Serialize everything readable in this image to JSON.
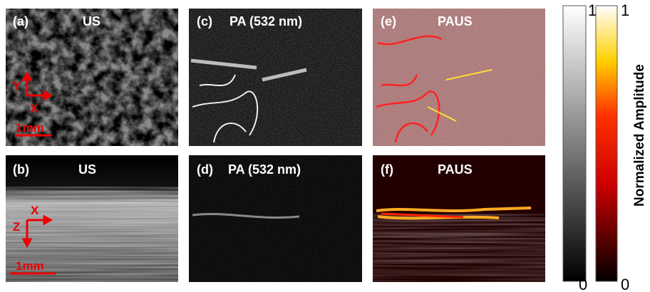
{
  "panels": [
    {
      "label": "(a)",
      "title": "US"
    },
    {
      "label": "(c)",
      "title": "PA (532 nm)"
    },
    {
      "label": "(e)",
      "title": "PAUS"
    },
    {
      "label": "(b)",
      "title": "US"
    },
    {
      "label": "(d)",
      "title": "PA (532 nm)"
    },
    {
      "label": "(f)",
      "title": "PAUS"
    }
  ],
  "annotations": {
    "top_axes": [
      "Y",
      "X"
    ],
    "top_scale": "1mm",
    "bottom_axes": [
      "X",
      "Z"
    ],
    "bottom_scale": "1mm"
  },
  "colorbars": [
    {
      "max": "1",
      "min": "0"
    },
    {
      "max": "1",
      "min": "0"
    }
  ],
  "colorbar_label": "Normalized Amplitude"
}
